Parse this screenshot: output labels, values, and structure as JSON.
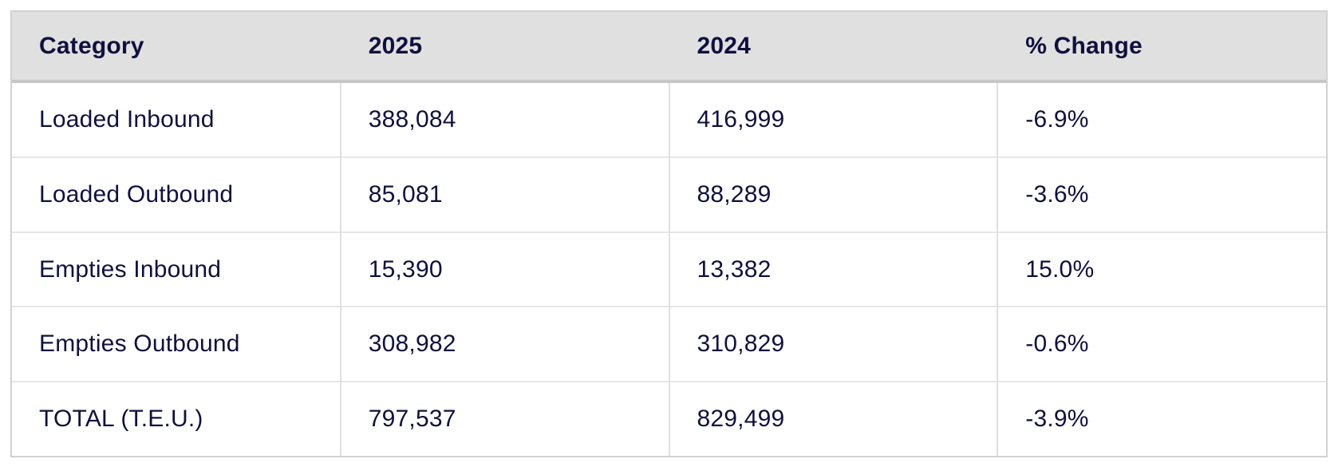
{
  "colors": {
    "page_bg": "#ffffff",
    "text_navy": "#10103f",
    "header_bg": "#e0e0e0",
    "header_border_bottom": "#c7c7c7",
    "outer_border": "#d1d1d1",
    "cell_border_v": "#dfdfdf",
    "row_border_h": "#e6e6e6"
  },
  "table": {
    "columns": [
      "Category",
      "2025",
      "2024",
      "% Change"
    ],
    "rows": [
      {
        "category": "Loaded Inbound",
        "y2025": "388,084",
        "y2024": "416,999",
        "pct_change": "-6.9%"
      },
      {
        "category": "Loaded Outbound",
        "y2025": "85,081",
        "y2024": "88,289",
        "pct_change": "-3.6%"
      },
      {
        "category": "Empties Inbound",
        "y2025": "15,390",
        "y2024": "13,382",
        "pct_change": "15.0%"
      },
      {
        "category": "Empties Outbound",
        "y2025": "308,982",
        "y2024": "310,829",
        "pct_change": "-0.6%"
      },
      {
        "category": "TOTAL (T.E.U.)",
        "y2025": "797,537",
        "y2024": "829,499",
        "pct_change": "-3.9%"
      }
    ]
  },
  "chart_data": {
    "type": "table",
    "title": "",
    "categories": [
      "Loaded Inbound",
      "Loaded Outbound",
      "Empties Inbound",
      "Empties Outbound",
      "TOTAL (T.E.U.)"
    ],
    "series": [
      {
        "name": "2025",
        "values": [
          388084,
          85081,
          15390,
          308982,
          797537
        ]
      },
      {
        "name": "2024",
        "values": [
          416999,
          88289,
          13382,
          310829,
          829499
        ]
      },
      {
        "name": "% Change",
        "values": [
          -6.9,
          -3.6,
          15.0,
          -0.6,
          -3.9
        ]
      }
    ],
    "layout_hints": {
      "header_background": "#e0e0e0",
      "grid": "on",
      "first_row_is_header": true,
      "last_row_is_total": true
    }
  }
}
